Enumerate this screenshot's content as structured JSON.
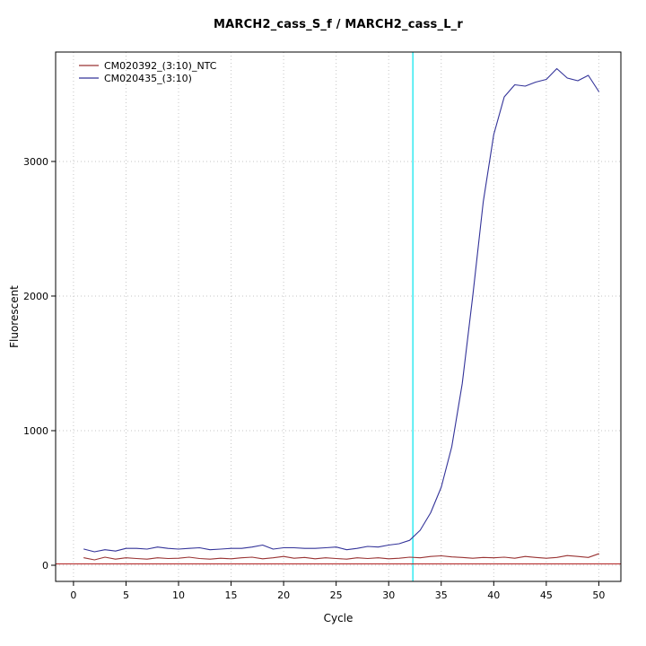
{
  "title": "MARCH2_cass_S_f / MARCH2_cass_L_r",
  "chart_data": {
    "type": "line",
    "title": "MARCH2_cass_S_f / MARCH2_cass_L_r",
    "xlabel": "Cycle",
    "ylabel": "Fluorescent",
    "xlim": [
      -1.7,
      52.1
    ],
    "ylim": [
      -120,
      3813
    ],
    "x_ticks": [
      0,
      5,
      10,
      15,
      20,
      25,
      30,
      35,
      40,
      45,
      50
    ],
    "y_ticks": [
      0,
      1000,
      2000,
      3000
    ],
    "grid": true,
    "grid_color": "#c6c6c6",
    "legend_position": "top-left",
    "ct_line": {
      "x": 32.3,
      "color": "#00e5ee"
    },
    "threshold_line": {
      "y": 10,
      "color": "#b22222"
    },
    "x": [
      1,
      2,
      3,
      4,
      5,
      6,
      7,
      8,
      9,
      10,
      11,
      12,
      13,
      14,
      15,
      16,
      17,
      18,
      19,
      20,
      21,
      22,
      23,
      24,
      25,
      26,
      27,
      28,
      29,
      30,
      31,
      32,
      33,
      34,
      35,
      36,
      37,
      38,
      39,
      40,
      41,
      42,
      43,
      44,
      45,
      46,
      47,
      48,
      49,
      50
    ],
    "series": [
      {
        "name": "CM020392_(3:10)_NTC",
        "color": "#993333",
        "values": [
          55,
          40,
          60,
          45,
          55,
          50,
          45,
          55,
          50,
          52,
          60,
          50,
          45,
          52,
          48,
          55,
          60,
          48,
          55,
          65,
          52,
          58,
          48,
          55,
          50,
          45,
          55,
          50,
          55,
          48,
          52,
          60,
          55,
          65,
          70,
          62,
          58,
          52,
          58,
          55,
          60,
          52,
          65,
          58,
          52,
          58,
          72,
          65,
          58,
          85
        ]
      },
      {
        "name": "CM020435_(3:10)",
        "color": "#333399",
        "values": [
          120,
          100,
          115,
          105,
          125,
          125,
          120,
          135,
          125,
          120,
          125,
          130,
          115,
          120,
          125,
          125,
          135,
          150,
          120,
          130,
          130,
          125,
          125,
          130,
          135,
          115,
          125,
          140,
          135,
          150,
          160,
          185,
          260,
          390,
          580,
          880,
          1350,
          2000,
          2700,
          3200,
          3480,
          3570,
          3560,
          3590,
          3610,
          3690,
          3620,
          3600,
          3640,
          3520
        ]
      }
    ]
  }
}
